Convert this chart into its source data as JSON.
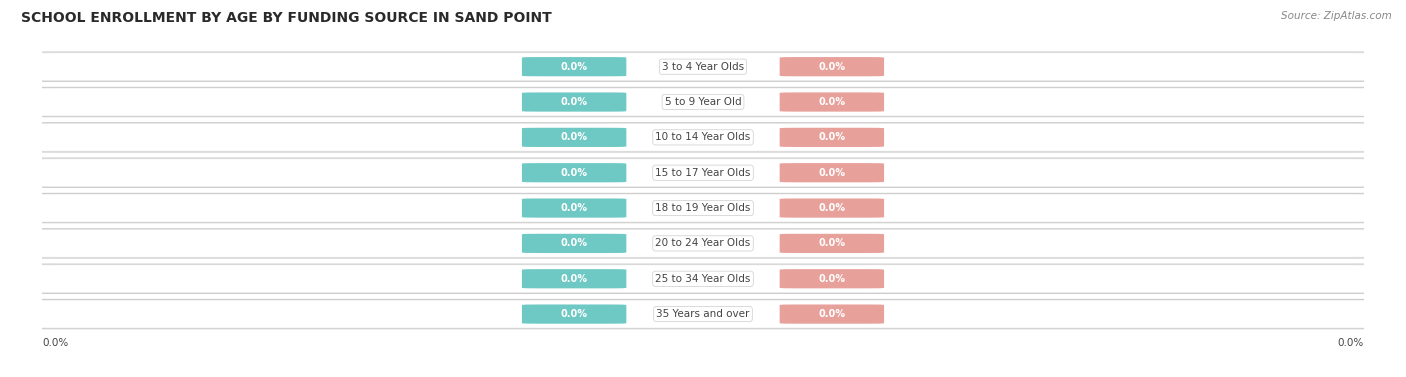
{
  "title": "SCHOOL ENROLLMENT BY AGE BY FUNDING SOURCE IN SAND POINT",
  "source": "Source: ZipAtlas.com",
  "categories": [
    "3 to 4 Year Olds",
    "5 to 9 Year Old",
    "10 to 14 Year Olds",
    "15 to 17 Year Olds",
    "18 to 19 Year Olds",
    "20 to 24 Year Olds",
    "25 to 34 Year Olds",
    "35 Years and over"
  ],
  "public_values": [
    0.0,
    0.0,
    0.0,
    0.0,
    0.0,
    0.0,
    0.0,
    0.0
  ],
  "private_values": [
    0.0,
    0.0,
    0.0,
    0.0,
    0.0,
    0.0,
    0.0,
    0.0
  ],
  "public_color": "#6EC9C4",
  "private_color": "#E8A09A",
  "row_bg_color": "#EFEFEF",
  "row_edge_color": "#CCCCCC",
  "label_color": "#444444",
  "title_fontsize": 10,
  "source_fontsize": 7.5,
  "cat_label_fontsize": 7.5,
  "value_fontsize": 7,
  "legend_fontsize": 8,
  "left_label": "0.0%",
  "right_label": "0.0%",
  "background_color": "#FFFFFF"
}
